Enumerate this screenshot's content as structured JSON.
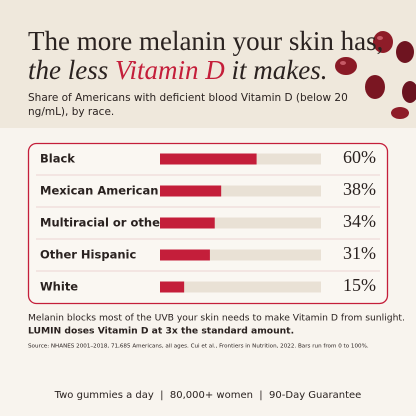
{
  "chart_data": {
    "type": "bar",
    "title_line1": "The more melanin your skin has,",
    "title_line2": [
      "the less ",
      "Vitamin D",
      " it makes."
    ],
    "subtitle": [
      "Share of Americans with deficient blood Vitamin D (below 20",
      "ng/mL), by race."
    ],
    "categories": [
      "Black",
      "Mexican American",
      "Multiracial or other",
      "Other Hispanic",
      "White"
    ],
    "values": [
      60,
      38,
      34,
      31,
      15
    ],
    "value_labels": [
      "60%",
      "38%",
      "34%",
      "31%",
      "15%"
    ],
    "xlim": [
      0,
      100
    ],
    "color": "#c41e3a",
    "track_color": "#e9e1d5",
    "note": "Melanin blocks most of the UVB your skin needs to make Vitamin D from sunlight.",
    "highlight": "LUMIN doses Vitamin D at 3x the standard amount.",
    "source": "Source: NHANES 2001–2018, 71,685 Americans, all ages. Cui et al., Frontiers in Nutrition, 2022. Bars run from 0 to 100%.",
    "tagline": "Two gummies a day  |  80,000+ women  |  90-Day Guarantee"
  }
}
